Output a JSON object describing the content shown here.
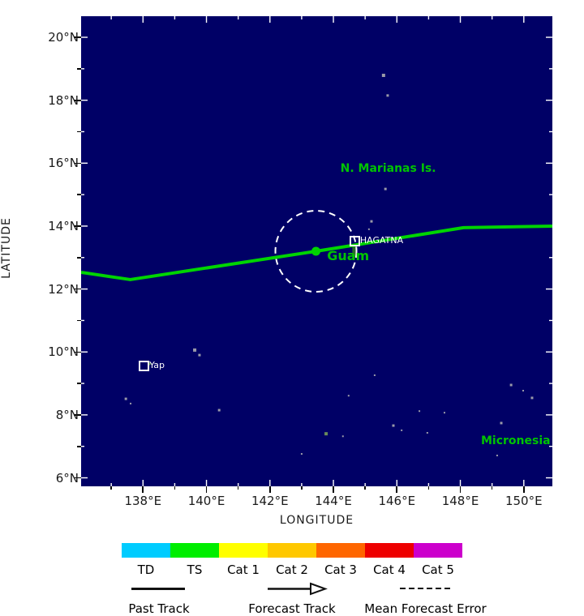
{
  "chart_data": {
    "type": "map-track",
    "xlabel": "LONGITUDE",
    "ylabel": "LATITUDE",
    "xlim": [
      136.05,
      150.9
    ],
    "ylim": [
      5.73,
      20.67
    ],
    "x_major_ticks": [
      138,
      140,
      142,
      144,
      146,
      148,
      150
    ],
    "x_minor_ticks": [
      137,
      139,
      141,
      143,
      145,
      147,
      149
    ],
    "y_major_ticks": [
      6,
      8,
      10,
      12,
      14,
      16,
      18,
      20
    ],
    "y_minor_ticks": [
      7,
      9,
      11,
      13,
      15,
      17,
      19
    ],
    "x_tick_suffix": "°E",
    "y_tick_suffix": "°N",
    "map_bg_color": "#000066",
    "track": {
      "color": "#00d400",
      "points_lon_lat": [
        [
          136.05,
          12.53
        ],
        [
          137.6,
          12.3
        ],
        [
          143.45,
          13.2
        ],
        [
          148.1,
          13.95
        ],
        [
          150.9,
          14.0
        ]
      ],
      "current_position_lon_lat": [
        143.45,
        13.2
      ],
      "error_circle_radius_px": 50,
      "error_circle_color": "#ffffff"
    },
    "region_labels": [
      {
        "label": "N. Marianas Is.",
        "lon": 144.22,
        "lat": 15.8,
        "font_px": 14,
        "color": "#00c400"
      },
      {
        "label": "Guam",
        "lon": 143.8,
        "lat": 13.05,
        "font_px": 16,
        "color": "#00c400"
      },
      {
        "label": "Micronesia",
        "lon": 148.65,
        "lat": 7.15,
        "font_px": 14,
        "color": "#00c400"
      }
    ],
    "city_markers": [
      {
        "label": "HAGATNA",
        "lon": 144.66,
        "lat": 13.54
      },
      {
        "label": "Yap",
        "lon": 138.02,
        "lat": 9.57
      }
    ],
    "islands": [
      {
        "lon": 145.58,
        "lat": 18.79,
        "s": 4,
        "c": "#9a9aa8"
      },
      {
        "lon": 145.71,
        "lat": 18.15,
        "s": 3,
        "c": "#9a9aa8"
      },
      {
        "lon": 145.64,
        "lat": 15.18,
        "s": 3,
        "c": "#9a9aa8"
      },
      {
        "lon": 145.2,
        "lat": 14.15,
        "s": 3,
        "c": "#9a9aa8"
      },
      {
        "lon": 145.12,
        "lat": 13.9,
        "s": 2,
        "c": "#9a9aa8"
      },
      {
        "lon": 144.66,
        "lat": 13.3,
        "s": 5,
        "c": "#2a6a2a"
      },
      {
        "lon": 138.2,
        "lat": 9.62,
        "s": 3,
        "c": "#4a8a3a"
      },
      {
        "lon": 139.63,
        "lat": 10.06,
        "s": 4,
        "c": "#9a9aa8"
      },
      {
        "lon": 139.78,
        "lat": 9.9,
        "s": 3,
        "c": "#9a9aa8"
      },
      {
        "lon": 137.46,
        "lat": 8.51,
        "s": 3,
        "c": "#9a9aa8"
      },
      {
        "lon": 137.61,
        "lat": 8.36,
        "s": 2,
        "c": "#9a9aa8"
      },
      {
        "lon": 140.4,
        "lat": 8.15,
        "s": 3,
        "c": "#9a9aa8"
      },
      {
        "lon": 143.77,
        "lat": 7.4,
        "s": 4,
        "c": "#6a8a5a"
      },
      {
        "lon": 143.0,
        "lat": 6.76,
        "s": 2,
        "c": "#9a9aa8"
      },
      {
        "lon": 144.48,
        "lat": 8.61,
        "s": 2,
        "c": "#9a9aa8"
      },
      {
        "lon": 145.3,
        "lat": 9.26,
        "s": 2,
        "c": "#9a9aa8"
      },
      {
        "lon": 145.89,
        "lat": 7.66,
        "s": 3,
        "c": "#9a9aa8"
      },
      {
        "lon": 146.15,
        "lat": 7.51,
        "s": 2,
        "c": "#9a9aa8"
      },
      {
        "lon": 146.71,
        "lat": 8.12,
        "s": 2,
        "c": "#9a9aa8"
      },
      {
        "lon": 147.5,
        "lat": 8.07,
        "s": 2,
        "c": "#9a9aa8"
      },
      {
        "lon": 146.96,
        "lat": 7.43,
        "s": 2,
        "c": "#9a9aa8"
      },
      {
        "lon": 149.29,
        "lat": 7.74,
        "s": 3,
        "c": "#9a9aa8"
      },
      {
        "lon": 149.6,
        "lat": 8.95,
        "s": 3,
        "c": "#9a9aa8"
      },
      {
        "lon": 149.98,
        "lat": 8.77,
        "s": 2,
        "c": "#9a9aa8"
      },
      {
        "lon": 150.26,
        "lat": 8.54,
        "s": 3,
        "c": "#9a9aa8"
      },
      {
        "lon": 149.16,
        "lat": 6.71,
        "s": 2,
        "c": "#9a9aa8"
      },
      {
        "lon": 144.3,
        "lat": 7.32,
        "s": 2,
        "c": "#9a9aa8"
      }
    ]
  },
  "legend": {
    "categories": [
      {
        "label": "TD",
        "color": "#00ccff"
      },
      {
        "label": "TS",
        "color": "#00ee00"
      },
      {
        "label": "Cat 1",
        "color": "#ffff00"
      },
      {
        "label": "Cat 2",
        "color": "#ffc800"
      },
      {
        "label": "Cat 3",
        "color": "#ff6600"
      },
      {
        "label": "Cat 4",
        "color": "#ee0000"
      },
      {
        "label": "Cat 5",
        "color": "#cc00cc"
      }
    ],
    "items": [
      {
        "label": "Past Track",
        "symbol": "solid-line"
      },
      {
        "label": "Forecast Track",
        "symbol": "arrow"
      },
      {
        "label": "Mean Forecast Error",
        "symbol": "dashed-line"
      }
    ]
  }
}
